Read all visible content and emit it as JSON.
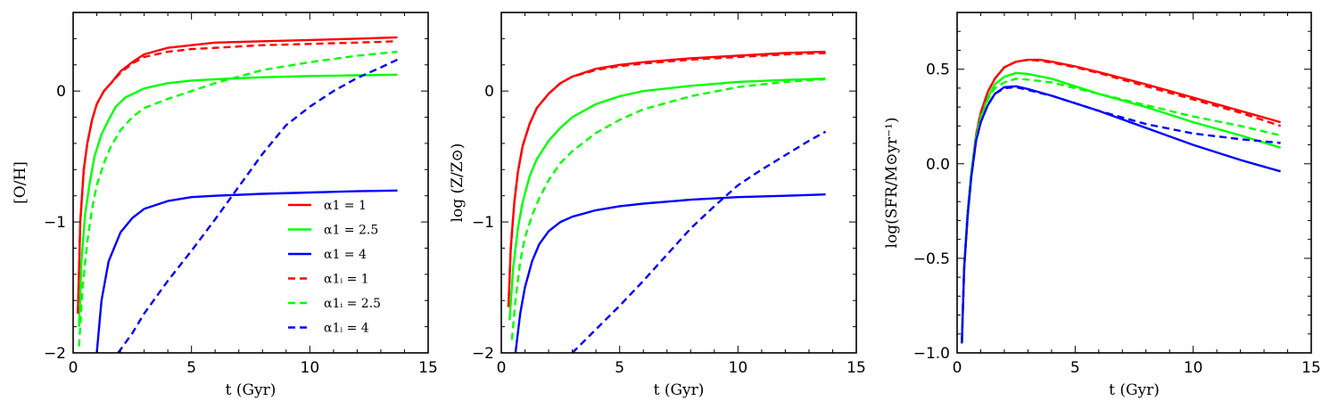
{
  "colors": {
    "red": "#ff0000",
    "green": "#00ff00",
    "blue": "#0000ff"
  },
  "chart_data": [
    {
      "type": "line",
      "xlabel": "t (Gyr)",
      "ylabel": "[O/H]",
      "xlim": [
        0,
        15
      ],
      "ylim": [
        -2,
        0.6
      ],
      "xticks": [
        0,
        5,
        10,
        15
      ],
      "xtick_labels": [
        "0",
        "5",
        "10",
        "15"
      ],
      "yticks": [
        -2,
        -1,
        0
      ],
      "ytick_labels": [
        "−2",
        "−1",
        "0"
      ],
      "grid": false,
      "legend": "lower-right",
      "series": [
        {
          "name": "α1 = 1",
          "color": "red",
          "style": "solid",
          "x": [
            0.2,
            0.3,
            0.45,
            0.6,
            0.8,
            1.0,
            1.3,
            1.6,
            2.0,
            2.5,
            3.0,
            4.0,
            5.0,
            6.0,
            8.0,
            10.0,
            12.0,
            13.7
          ],
          "y": [
            -1.7,
            -1.0,
            -0.6,
            -0.4,
            -0.22,
            -0.1,
            0.0,
            0.06,
            0.15,
            0.22,
            0.28,
            0.33,
            0.35,
            0.37,
            0.38,
            0.39,
            0.4,
            0.41
          ]
        },
        {
          "name": "α1 = 2.5",
          "color": "green",
          "style": "solid",
          "x": [
            0.25,
            0.35,
            0.5,
            0.7,
            0.9,
            1.2,
            1.5,
            1.8,
            2.2,
            3.0,
            4.0,
            5.0,
            6.0,
            8.0,
            10.0,
            12.0,
            13.7
          ],
          "y": [
            -1.8,
            -1.3,
            -0.95,
            -0.7,
            -0.5,
            -0.33,
            -0.22,
            -0.12,
            -0.05,
            0.02,
            0.06,
            0.08,
            0.09,
            0.105,
            0.115,
            0.12,
            0.125
          ]
        },
        {
          "name": "α1 = 4",
          "color": "blue",
          "style": "solid",
          "x": [
            1.0,
            1.2,
            1.5,
            2.0,
            2.5,
            3.0,
            4.0,
            5.0,
            6.0,
            8.0,
            10.0,
            12.0,
            13.7
          ],
          "y": [
            -2.0,
            -1.6,
            -1.3,
            -1.08,
            -0.97,
            -0.9,
            -0.84,
            -0.81,
            -0.8,
            -0.785,
            -0.775,
            -0.765,
            -0.76
          ]
        },
        {
          "name": "α1ᵢ = 1",
          "color": "red",
          "style": "dashed",
          "x": [
            0.2,
            0.3,
            0.45,
            0.6,
            0.8,
            1.0,
            1.3,
            1.6,
            2.0,
            2.5,
            3.0,
            4.0,
            5.0,
            6.0,
            8.0,
            10.0,
            12.0,
            13.7
          ],
          "y": [
            -1.7,
            -1.0,
            -0.6,
            -0.4,
            -0.22,
            -0.1,
            0.0,
            0.06,
            0.14,
            0.21,
            0.26,
            0.3,
            0.32,
            0.33,
            0.35,
            0.36,
            0.37,
            0.38
          ]
        },
        {
          "name": "α1ᵢ = 2.5",
          "color": "green",
          "style": "dashed",
          "x": [
            0.25,
            0.4,
            0.6,
            0.8,
            1.0,
            1.3,
            1.6,
            2.0,
            2.5,
            3.0,
            4.0,
            5.0,
            6.0,
            7.0,
            8.0,
            10.0,
            12.0,
            13.7
          ],
          "y": [
            -1.95,
            -1.5,
            -1.15,
            -0.9,
            -0.72,
            -0.55,
            -0.42,
            -0.3,
            -0.2,
            -0.13,
            -0.06,
            0.0,
            0.06,
            0.11,
            0.16,
            0.22,
            0.27,
            0.3
          ]
        },
        {
          "name": "α1ᵢ = 4",
          "color": "blue",
          "style": "dashed",
          "x": [
            1.9,
            2.5,
            3.0,
            4.0,
            5.0,
            6.0,
            7.0,
            8.0,
            9.0,
            10.0,
            11.0,
            12.0,
            13.0,
            13.7
          ],
          "y": [
            -2.0,
            -1.85,
            -1.7,
            -1.45,
            -1.22,
            -0.98,
            -0.73,
            -0.48,
            -0.26,
            -0.12,
            0.0,
            0.1,
            0.18,
            0.24
          ]
        }
      ]
    },
    {
      "type": "line",
      "xlabel": "t (Gyr)",
      "ylabel": "log (Z/Z⊙)",
      "xlim": [
        0,
        15
      ],
      "ylim": [
        -2,
        0.6
      ],
      "xticks": [
        0,
        5,
        10,
        15
      ],
      "xtick_labels": [
        "0",
        "5",
        "10",
        "15"
      ],
      "yticks": [
        -2,
        -1,
        0
      ],
      "ytick_labels": [
        "−2",
        "−1",
        "0"
      ],
      "grid": false,
      "series": [
        {
          "color": "red",
          "style": "solid",
          "x": [
            0.3,
            0.4,
            0.55,
            0.7,
            0.9,
            1.2,
            1.5,
            2.0,
            2.5,
            3.0,
            4.0,
            5.0,
            6.0,
            8.0,
            10.0,
            12.0,
            13.7
          ],
          "y": [
            -1.65,
            -1.2,
            -0.85,
            -0.62,
            -0.42,
            -0.25,
            -0.13,
            -0.02,
            0.06,
            0.11,
            0.17,
            0.2,
            0.22,
            0.25,
            0.27,
            0.29,
            0.3
          ]
        },
        {
          "color": "green",
          "style": "solid",
          "x": [
            0.35,
            0.5,
            0.7,
            0.9,
            1.2,
            1.5,
            2.0,
            2.5,
            3.0,
            4.0,
            5.0,
            6.0,
            8.0,
            10.0,
            12.0,
            13.7
          ],
          "y": [
            -1.75,
            -1.35,
            -1.05,
            -0.85,
            -0.65,
            -0.52,
            -0.38,
            -0.28,
            -0.2,
            -0.1,
            -0.04,
            0.0,
            0.04,
            0.07,
            0.085,
            0.095
          ]
        },
        {
          "color": "blue",
          "style": "solid",
          "x": [
            0.6,
            0.8,
            1.0,
            1.3,
            1.6,
            2.0,
            2.5,
            3.0,
            4.0,
            5.0,
            6.0,
            8.0,
            10.0,
            12.0,
            13.7
          ],
          "y": [
            -2.0,
            -1.7,
            -1.5,
            -1.3,
            -1.17,
            -1.07,
            -1.0,
            -0.96,
            -0.91,
            -0.88,
            -0.86,
            -0.83,
            -0.81,
            -0.8,
            -0.79
          ]
        },
        {
          "color": "red",
          "style": "dashed",
          "x": [
            0.3,
            0.4,
            0.55,
            0.7,
            0.9,
            1.2,
            1.5,
            2.0,
            2.5,
            3.0,
            4.0,
            5.0,
            6.0,
            8.0,
            10.0,
            12.0,
            13.7
          ],
          "y": [
            -1.65,
            -1.2,
            -0.85,
            -0.62,
            -0.42,
            -0.25,
            -0.13,
            -0.02,
            0.06,
            0.11,
            0.16,
            0.19,
            0.21,
            0.24,
            0.26,
            0.28,
            0.29
          ]
        },
        {
          "color": "green",
          "style": "dashed",
          "x": [
            0.45,
            0.6,
            0.8,
            1.0,
            1.3,
            1.6,
            2.0,
            2.5,
            3.0,
            4.0,
            5.0,
            6.0,
            8.0,
            10.0,
            12.0,
            13.7
          ],
          "y": [
            -1.9,
            -1.6,
            -1.3,
            -1.12,
            -0.95,
            -0.82,
            -0.68,
            -0.55,
            -0.46,
            -0.32,
            -0.22,
            -0.14,
            -0.04,
            0.03,
            0.07,
            0.09
          ]
        },
        {
          "color": "blue",
          "style": "dashed",
          "x": [
            3.0,
            4.0,
            5.0,
            6.0,
            7.0,
            8.0,
            9.0,
            10.0,
            11.0,
            12.0,
            13.0,
            13.7
          ],
          "y": [
            -2.0,
            -1.82,
            -1.64,
            -1.45,
            -1.25,
            -1.05,
            -0.88,
            -0.72,
            -0.6,
            -0.49,
            -0.38,
            -0.31
          ]
        }
      ]
    },
    {
      "type": "line",
      "xlabel": "t (Gyr)",
      "ylabel": "log(SFR/M⊙yr⁻¹)",
      "xlim": [
        0,
        15
      ],
      "ylim": [
        -1.0,
        0.8
      ],
      "xticks": [
        0,
        5,
        10,
        15
      ],
      "xtick_labels": [
        "0",
        "5",
        "10",
        "15"
      ],
      "yticks": [
        -1.0,
        -0.5,
        0.0,
        0.5
      ],
      "ytick_labels": [
        "−1.0",
        "−0.5",
        "0.0",
        "0.5"
      ],
      "grid": false,
      "series": [
        {
          "color": "red",
          "style": "solid",
          "x": [
            0.2,
            0.3,
            0.45,
            0.6,
            0.8,
            1.0,
            1.3,
            1.6,
            2.0,
            2.5,
            3.0,
            3.5,
            4.0,
            5.0,
            6.0,
            8.0,
            10.0,
            12.0,
            13.7
          ],
          "y": [
            -0.95,
            -0.55,
            -0.25,
            -0.05,
            0.15,
            0.27,
            0.38,
            0.45,
            0.51,
            0.54,
            0.55,
            0.55,
            0.54,
            0.515,
            0.485,
            0.42,
            0.35,
            0.28,
            0.22
          ]
        },
        {
          "color": "green",
          "style": "solid",
          "x": [
            0.2,
            0.3,
            0.45,
            0.6,
            0.8,
            1.0,
            1.3,
            1.6,
            2.0,
            2.5,
            3.0,
            4.0,
            5.0,
            6.0,
            8.0,
            10.0,
            12.0,
            13.7
          ],
          "y": [
            -0.95,
            -0.55,
            -0.25,
            -0.05,
            0.14,
            0.25,
            0.35,
            0.42,
            0.46,
            0.48,
            0.475,
            0.45,
            0.41,
            0.37,
            0.3,
            0.22,
            0.15,
            0.085
          ]
        },
        {
          "color": "blue",
          "style": "solid",
          "x": [
            0.2,
            0.3,
            0.45,
            0.6,
            0.8,
            1.0,
            1.3,
            1.6,
            2.0,
            2.5,
            3.0,
            4.0,
            5.0,
            6.0,
            8.0,
            10.0,
            12.0,
            13.7
          ],
          "y": [
            -0.95,
            -0.55,
            -0.27,
            -0.07,
            0.12,
            0.22,
            0.31,
            0.37,
            0.405,
            0.41,
            0.395,
            0.36,
            0.32,
            0.28,
            0.19,
            0.1,
            0.02,
            -0.04
          ]
        },
        {
          "color": "red",
          "style": "dashed",
          "x": [
            0.2,
            0.3,
            0.45,
            0.6,
            0.8,
            1.0,
            1.3,
            1.6,
            2.0,
            2.5,
            3.0,
            3.5,
            4.0,
            5.0,
            6.0,
            8.0,
            10.0,
            12.0,
            13.7
          ],
          "y": [
            -0.95,
            -0.55,
            -0.25,
            -0.05,
            0.15,
            0.27,
            0.38,
            0.45,
            0.51,
            0.54,
            0.55,
            0.545,
            0.535,
            0.51,
            0.48,
            0.41,
            0.34,
            0.27,
            0.2
          ]
        },
        {
          "color": "green",
          "style": "dashed",
          "x": [
            0.2,
            0.3,
            0.45,
            0.6,
            0.8,
            1.0,
            1.3,
            1.6,
            2.0,
            2.5,
            3.0,
            4.0,
            5.0,
            6.0,
            8.0,
            10.0,
            12.0,
            13.7
          ],
          "y": [
            -0.95,
            -0.55,
            -0.25,
            -0.05,
            0.14,
            0.24,
            0.34,
            0.4,
            0.43,
            0.45,
            0.445,
            0.43,
            0.4,
            0.37,
            0.31,
            0.25,
            0.2,
            0.15
          ]
        },
        {
          "color": "blue",
          "style": "dashed",
          "x": [
            0.2,
            0.3,
            0.45,
            0.6,
            0.8,
            1.0,
            1.3,
            1.6,
            2.0,
            2.5,
            3.0,
            4.0,
            5.0,
            6.0,
            8.0,
            10.0,
            12.0,
            13.7
          ],
          "y": [
            -0.95,
            -0.55,
            -0.27,
            -0.07,
            0.12,
            0.22,
            0.31,
            0.37,
            0.4,
            0.405,
            0.39,
            0.36,
            0.32,
            0.28,
            0.21,
            0.16,
            0.13,
            0.11
          ]
        }
      ]
    }
  ]
}
